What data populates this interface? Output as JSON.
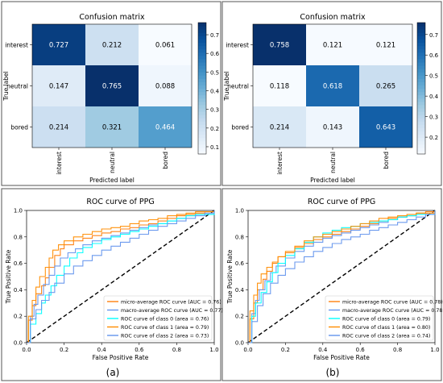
{
  "figure": {
    "panel_labels": [
      "(a)",
      "(b)"
    ]
  },
  "colors": {
    "cmap": [
      "#f7fbff",
      "#deebf7",
      "#c6dbef",
      "#9ecae1",
      "#6baed6",
      "#4292c6",
      "#2171b5",
      "#08519c",
      "#08306b"
    ],
    "diagonal": "#000000",
    "series": [
      "#ff7f0e",
      "#6495ed",
      "#00ffff",
      "#ff8c00",
      "#6495ed"
    ]
  },
  "chart_data": [
    {
      "type": "heatmap",
      "title": "Confusion matrix",
      "xlabel": "Predicted label",
      "ylabel": "True label",
      "row_labels": [
        "interest",
        "neutral",
        "bored"
      ],
      "col_labels": [
        "interest",
        "neutral",
        "bored"
      ],
      "values": [
        [
          0.727,
          0.212,
          0.061
        ],
        [
          0.147,
          0.765,
          0.088
        ],
        [
          0.214,
          0.321,
          0.464
        ]
      ],
      "value_labels": [
        [
          "0.727",
          "0.212",
          "0.061"
        ],
        [
          "0.147",
          "0.765",
          "0.088"
        ],
        [
          "0.214",
          "0.321",
          "0.464"
        ]
      ],
      "colorbar_range": [
        0.061,
        0.765
      ],
      "colorbar_ticks": [
        0.1,
        0.2,
        0.3,
        0.4,
        0.5,
        0.6,
        0.7
      ],
      "colorbar_tick_labels": [
        "0.1",
        "0.2",
        "0.3",
        "0.4",
        "0.5",
        "0.6",
        "0.7"
      ]
    },
    {
      "type": "heatmap",
      "title": "Confusion matrix",
      "xlabel": "Predicted label",
      "ylabel": "True label",
      "row_labels": [
        "interest",
        "neutral",
        "bored"
      ],
      "col_labels": [
        "interest",
        "neutral",
        "bored"
      ],
      "values": [
        [
          0.758,
          0.121,
          0.121
        ],
        [
          0.118,
          0.618,
          0.265
        ],
        [
          0.214,
          0.143,
          0.643
        ]
      ],
      "value_labels": [
        [
          "0.758",
          "0.121",
          "0.121"
        ],
        [
          "0.118",
          "0.618",
          "0.265"
        ],
        [
          "0.214",
          "0.143",
          "0.643"
        ]
      ],
      "colorbar_range": [
        0.118,
        0.758
      ],
      "colorbar_ticks": [
        0.2,
        0.3,
        0.4,
        0.5,
        0.6,
        0.7
      ],
      "colorbar_tick_labels": [
        "0.2",
        "0.3",
        "0.4",
        "0.5",
        "0.6",
        "0.7"
      ]
    },
    {
      "type": "line",
      "title": "ROC curve of PPG",
      "xlabel": "False Positive Rate",
      "ylabel": "True Positive Rate",
      "xlim": [
        0,
        1
      ],
      "ylim": [
        0,
        1
      ],
      "ticks": [
        0.0,
        0.2,
        0.4,
        0.6,
        0.8,
        1.0
      ],
      "tick_labels": [
        "0.0",
        "0.2",
        "0.4",
        "0.6",
        "0.8",
        "1.0"
      ],
      "legend_position": "lower-right",
      "series": [
        {
          "name": "micro-average ROC curve (AUC = 0.76)",
          "x": [
            0,
            0.01,
            0.03,
            0.05,
            0.08,
            0.1,
            0.12,
            0.15,
            0.18,
            0.2,
            0.25,
            0.3,
            0.35,
            0.4,
            0.45,
            0.5,
            0.55,
            0.6,
            0.65,
            0.7,
            0.75,
            0.8,
            0.85,
            0.9,
            0.95,
            1.0
          ],
          "y": [
            0,
            0.17,
            0.28,
            0.37,
            0.43,
            0.49,
            0.57,
            0.66,
            0.71,
            0.74,
            0.77,
            0.79,
            0.81,
            0.83,
            0.84,
            0.86,
            0.87,
            0.89,
            0.9,
            0.92,
            0.94,
            0.96,
            0.97,
            0.98,
            0.99,
            1.0
          ]
        },
        {
          "name": "macro-average ROC curve (AUC = 0.77)",
          "x": [
            0,
            0.02,
            0.04,
            0.06,
            0.09,
            0.12,
            0.15,
            0.18,
            0.22,
            0.26,
            0.3,
            0.35,
            0.4,
            0.45,
            0.5,
            0.55,
            0.6,
            0.65,
            0.7,
            0.75,
            0.8,
            0.85,
            0.9,
            1.0
          ],
          "y": [
            0,
            0.2,
            0.29,
            0.36,
            0.44,
            0.51,
            0.58,
            0.64,
            0.68,
            0.71,
            0.74,
            0.77,
            0.79,
            0.81,
            0.83,
            0.85,
            0.87,
            0.89,
            0.9,
            0.92,
            0.94,
            0.96,
            0.97,
            1.0
          ]
        },
        {
          "name": "ROC curve of class 0 (area = 0.76)",
          "x": [
            0,
            0.02,
            0.05,
            0.08,
            0.1,
            0.13,
            0.16,
            0.2,
            0.23,
            0.27,
            0.3,
            0.35,
            0.4,
            0.45,
            0.5,
            0.55,
            0.6,
            0.65,
            0.7,
            0.75,
            0.8,
            0.85,
            0.9,
            1.0
          ],
          "y": [
            0,
            0.14,
            0.22,
            0.3,
            0.36,
            0.43,
            0.51,
            0.58,
            0.64,
            0.68,
            0.72,
            0.75,
            0.78,
            0.8,
            0.82,
            0.84,
            0.86,
            0.88,
            0.9,
            0.92,
            0.94,
            0.96,
            0.97,
            1.0
          ]
        },
        {
          "name": "ROC curve of class 1 (area = 0.79)",
          "x": [
            0,
            0.01,
            0.03,
            0.05,
            0.07,
            0.1,
            0.12,
            0.14,
            0.17,
            0.2,
            0.25,
            0.3,
            0.35,
            0.4,
            0.45,
            0.5,
            0.55,
            0.6,
            0.65,
            0.7,
            0.75,
            0.8,
            0.85,
            0.9,
            1.0
          ],
          "y": [
            0,
            0.2,
            0.32,
            0.42,
            0.5,
            0.57,
            0.64,
            0.7,
            0.74,
            0.77,
            0.8,
            0.82,
            0.84,
            0.86,
            0.87,
            0.88,
            0.9,
            0.92,
            0.93,
            0.94,
            0.96,
            0.97,
            0.98,
            0.99,
            1.0
          ]
        },
        {
          "name": "ROC curve of class 2 (area = 0.73)",
          "x": [
            0,
            0.02,
            0.05,
            0.08,
            0.12,
            0.15,
            0.2,
            0.25,
            0.3,
            0.35,
            0.4,
            0.45,
            0.5,
            0.55,
            0.6,
            0.65,
            0.7,
            0.75,
            0.8,
            0.85,
            0.9,
            0.95,
            1.0
          ],
          "y": [
            0,
            0.18,
            0.25,
            0.32,
            0.38,
            0.45,
            0.52,
            0.58,
            0.62,
            0.66,
            0.7,
            0.73,
            0.76,
            0.79,
            0.82,
            0.85,
            0.88,
            0.9,
            0.92,
            0.94,
            0.96,
            0.98,
            1.0
          ]
        }
      ]
    },
    {
      "type": "line",
      "title": "ROC curve of PPG",
      "xlabel": "False Positive Rate",
      "ylabel": "True Positive Rate",
      "xlim": [
        0,
        1
      ],
      "ylim": [
        0,
        1
      ],
      "ticks": [
        0.0,
        0.2,
        0.4,
        0.6,
        0.8,
        1.0
      ],
      "tick_labels": [
        "0.0",
        "0.2",
        "0.4",
        "0.6",
        "0.8",
        "1.0"
      ],
      "legend_position": "lower-right",
      "series": [
        {
          "name": "micro-average ROC curve (AUC = 0.78)",
          "x": [
            0,
            0.01,
            0.03,
            0.05,
            0.08,
            0.1,
            0.13,
            0.16,
            0.2,
            0.25,
            0.3,
            0.35,
            0.4,
            0.45,
            0.5,
            0.55,
            0.6,
            0.65,
            0.7,
            0.75,
            0.8,
            0.85,
            0.9,
            0.95,
            1.0
          ],
          "y": [
            0,
            0.18,
            0.3,
            0.4,
            0.48,
            0.54,
            0.6,
            0.65,
            0.68,
            0.72,
            0.75,
            0.78,
            0.8,
            0.82,
            0.84,
            0.86,
            0.88,
            0.9,
            0.92,
            0.94,
            0.95,
            0.96,
            0.98,
            0.99,
            1.0
          ]
        },
        {
          "name": "macro-average ROC curve (AUC = 0.78)",
          "x": [
            0,
            0.02,
            0.04,
            0.06,
            0.09,
            0.12,
            0.15,
            0.2,
            0.25,
            0.3,
            0.35,
            0.4,
            0.45,
            0.5,
            0.55,
            0.6,
            0.65,
            0.7,
            0.75,
            0.8,
            0.85,
            0.9,
            1.0
          ],
          "y": [
            0,
            0.22,
            0.32,
            0.4,
            0.47,
            0.53,
            0.58,
            0.64,
            0.69,
            0.73,
            0.76,
            0.79,
            0.81,
            0.83,
            0.85,
            0.87,
            0.89,
            0.91,
            0.93,
            0.95,
            0.96,
            0.97,
            1.0
          ]
        },
        {
          "name": "ROC curve of class 0 (area = 0.79)",
          "x": [
            0,
            0.02,
            0.04,
            0.07,
            0.1,
            0.13,
            0.16,
            0.2,
            0.25,
            0.3,
            0.35,
            0.4,
            0.45,
            0.5,
            0.55,
            0.6,
            0.65,
            0.7,
            0.75,
            0.8,
            0.85,
            0.9,
            1.0
          ],
          "y": [
            0,
            0.2,
            0.3,
            0.38,
            0.46,
            0.53,
            0.6,
            0.66,
            0.71,
            0.76,
            0.8,
            0.83,
            0.85,
            0.87,
            0.88,
            0.9,
            0.91,
            0.92,
            0.93,
            0.95,
            0.96,
            0.97,
            1.0
          ]
        },
        {
          "name": "ROC curve of class 1 (area = 0.80)",
          "x": [
            0,
            0.01,
            0.03,
            0.05,
            0.07,
            0.1,
            0.13,
            0.16,
            0.2,
            0.25,
            0.3,
            0.35,
            0.4,
            0.45,
            0.5,
            0.55,
            0.6,
            0.65,
            0.7,
            0.75,
            0.8,
            0.85,
            0.9,
            1.0
          ],
          "y": [
            0,
            0.24,
            0.36,
            0.45,
            0.52,
            0.57,
            0.61,
            0.65,
            0.69,
            0.73,
            0.77,
            0.8,
            0.82,
            0.84,
            0.86,
            0.88,
            0.9,
            0.92,
            0.94,
            0.95,
            0.96,
            0.97,
            0.98,
            1.0
          ]
        },
        {
          "name": "ROC curve of class 2 (area = 0.74)",
          "x": [
            0,
            0.02,
            0.05,
            0.08,
            0.12,
            0.16,
            0.2,
            0.25,
            0.3,
            0.35,
            0.4,
            0.45,
            0.5,
            0.55,
            0.6,
            0.65,
            0.7,
            0.75,
            0.8,
            0.85,
            0.9,
            0.95,
            1.0
          ],
          "y": [
            0,
            0.16,
            0.28,
            0.37,
            0.45,
            0.51,
            0.56,
            0.61,
            0.65,
            0.69,
            0.72,
            0.75,
            0.78,
            0.8,
            0.82,
            0.85,
            0.87,
            0.89,
            0.91,
            0.93,
            0.95,
            0.97,
            1.0
          ]
        }
      ]
    }
  ]
}
